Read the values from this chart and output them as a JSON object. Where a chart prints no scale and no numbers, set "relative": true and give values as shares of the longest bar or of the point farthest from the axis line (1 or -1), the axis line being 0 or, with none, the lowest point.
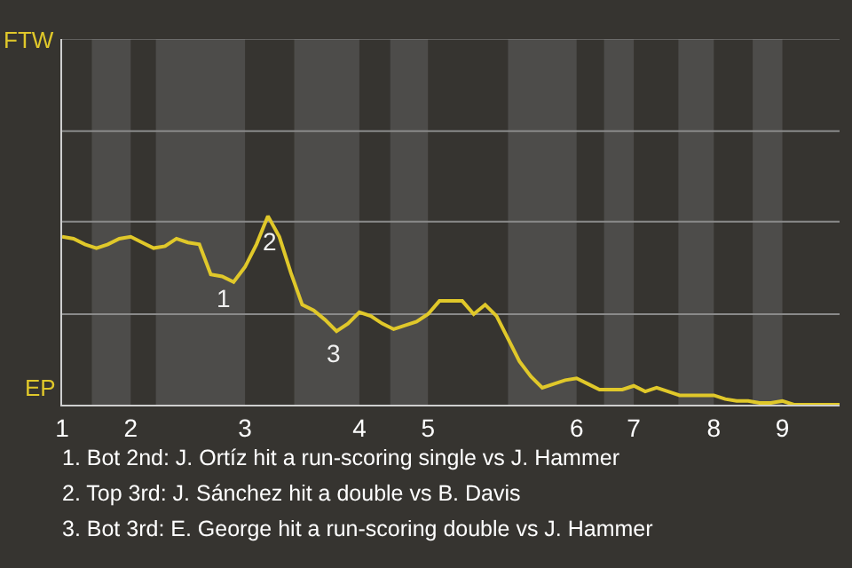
{
  "chart_data": {
    "type": "line",
    "relative": true,
    "categories": [
      "1",
      null,
      null,
      null,
      null,
      null,
      "2",
      null,
      null,
      null,
      null,
      null,
      null,
      null,
      null,
      null,
      "3",
      null,
      null,
      null,
      null,
      null,
      null,
      null,
      null,
      null,
      "4",
      null,
      null,
      null,
      null,
      null,
      "5",
      null,
      null,
      null,
      null,
      null,
      null,
      null,
      null,
      null,
      null,
      null,
      null,
      "6",
      null,
      null,
      null,
      null,
      "7",
      null,
      null,
      null,
      null,
      null,
      null,
      "8",
      null,
      null,
      null,
      null,
      null,
      "9",
      null,
      null,
      null,
      null,
      null
    ],
    "series": [
      {
        "color": "#e0c82a",
        "values": [
          0.89,
          0.88,
          0.85,
          0.83,
          0.85,
          0.88,
          0.89,
          0.86,
          0.83,
          0.84,
          0.88,
          0.86,
          0.85,
          0.69,
          0.68,
          0.65,
          0.73,
          0.85,
          1,
          0.89,
          0.7,
          0.53,
          0.5,
          0.45,
          0.39,
          0.43,
          0.49,
          0.47,
          0.43,
          0.4,
          0.42,
          0.44,
          0.48,
          0.55,
          0.55,
          0.55,
          0.48,
          0.53,
          0.47,
          0.35,
          0.23,
          0.15,
          0.09,
          0.11,
          0.13,
          0.14,
          0.11,
          0.08,
          0.08,
          0.08,
          0.1,
          0.07,
          0.09,
          0.07,
          0.05,
          0.05,
          0.05,
          0.05,
          0.03,
          0.02,
          0.02,
          0.01,
          0.01,
          0.02,
          0,
          0,
          0,
          0,
          0
        ]
      }
    ],
    "ref_lines": [
      {
        "axis": "y",
        "value": 0.48,
        "color": "#8a8a8a"
      },
      {
        "axis": "y",
        "value": 0.97,
        "color": "#8a8a8a"
      },
      {
        "axis": "y",
        "value": 1.45,
        "color": "#8a8a8a"
      },
      {
        "axis": "y",
        "value": 1.94,
        "color": "#8a8a8a"
      }
    ],
    "annotations": [
      "FTW",
      "EP",
      "1",
      "2",
      "3",
      "1. Bot 2nd: J. Ortíz hit a run-scoring single vs J. Hammer",
      "2. Top 3rd: J. Sánchez hit a double vs B. Davis",
      "3. Bot 3rd: E. George hit a run-scoring double vs J. Hammer"
    ],
    "marker": "none",
    "line_style": "solid"
  }
}
